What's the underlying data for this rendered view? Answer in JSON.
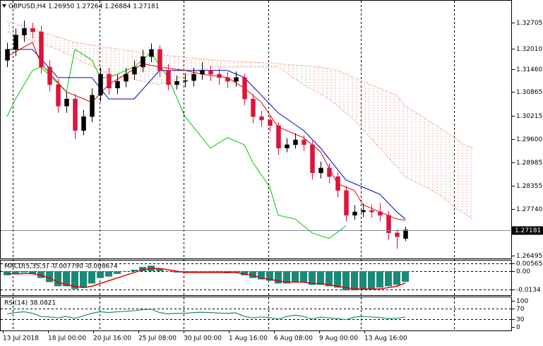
{
  "chart_data": {
    "type": "candlestick",
    "title": "GBPUSD,H4  1.26950 1.27264 1.26884 1.27181",
    "x_labels": [
      "13 Jul 2018",
      "18 Jul 00:00",
      "20 Jul 16:00",
      "25 Jul 08:00",
      "30 Jul 00:00",
      "1 Aug 16:00",
      "6 Aug 08:00",
      "9 Aug 00:00",
      "13 Aug 16:00"
    ],
    "ylim": [
      1.26401,
      1.33307
    ],
    "yticks": [
      1.32705,
      {
        "value": 1.3201,
        "label": "1.32010"
      },
      {
        "value": 1.3146,
        "label": "1.31460"
      },
      1.30865,
      1.30215,
      {
        "value": 1.296,
        "label": "1.29600"
      },
      1.28985,
      1.28355,
      {
        "value": 1.2774,
        "label": "1.27740"
      },
      1.26495
    ],
    "price_line": 1.27181,
    "up_color": "#000000",
    "down_color": "#dc143c",
    "candles": {
      "open": [
        1.317,
        1.3199,
        1.3237,
        1.3255,
        1.3246,
        1.3152,
        1.3105,
        1.3048,
        1.3067,
        1.2983,
        1.302,
        1.3077,
        1.3133,
        1.3096,
        1.3114,
        1.3133,
        1.3152,
        1.318,
        1.3199,
        1.3143,
        1.3105,
        1.3114,
        1.3116,
        1.3133,
        1.3143,
        1.3133,
        1.3124,
        1.3114,
        1.3124,
        1.3067,
        1.302,
        1.3011,
        1.2996,
        1.2936,
        1.2945,
        1.2958,
        1.2945,
        1.287,
        1.2883,
        1.286,
        1.2823,
        1.2757,
        1.2766,
        1.277,
        1.2766,
        1.2757,
        1.271,
        1.2695
      ],
      "high": [
        1.3217,
        1.3255,
        1.3276,
        1.327,
        1.3262,
        1.317,
        1.312,
        1.3085,
        1.308,
        1.3038,
        1.3095,
        1.3151,
        1.315,
        1.3132,
        1.315,
        1.317,
        1.3198,
        1.3215,
        1.321,
        1.316,
        1.313,
        1.3135,
        1.315,
        1.3165,
        1.3155,
        1.3148,
        1.3138,
        1.314,
        1.3135,
        1.308,
        1.3035,
        1.3025,
        1.3005,
        1.2962,
        1.2975,
        1.297,
        1.2955,
        1.29,
        1.2895,
        1.2872,
        1.2835,
        1.2784,
        1.2788,
        1.2786,
        1.279,
        1.2768,
        1.272,
        1.27264
      ],
      "low": [
        1.3152,
        1.3181,
        1.3219,
        1.3228,
        1.3134,
        1.3087,
        1.303,
        1.303,
        1.296,
        1.297,
        1.3005,
        1.306,
        1.3078,
        1.308,
        1.3098,
        1.3118,
        1.3138,
        1.3165,
        1.3125,
        1.309,
        1.3092,
        1.3098,
        1.31,
        1.3118,
        1.3115,
        1.3105,
        1.3096,
        1.31,
        1.305,
        1.3002,
        1.2993,
        1.298,
        1.2918,
        1.2925,
        1.2935,
        1.2928,
        1.2852,
        1.2855,
        1.2842,
        1.2805,
        1.274,
        1.2745,
        1.2752,
        1.275,
        1.274,
        1.2692,
        1.2668,
        1.26884
      ],
      "close": [
        1.3199,
        1.3237,
        1.3255,
        1.3246,
        1.3152,
        1.3105,
        1.3048,
        1.3067,
        1.2983,
        1.302,
        1.3077,
        1.3133,
        1.3096,
        1.3114,
        1.3133,
        1.3152,
        1.318,
        1.3199,
        1.3143,
        1.3105,
        1.3114,
        1.3116,
        1.3133,
        1.3143,
        1.3133,
        1.3124,
        1.3114,
        1.3124,
        1.3067,
        1.302,
        1.3011,
        1.2996,
        1.2936,
        1.2945,
        1.2958,
        1.2945,
        1.287,
        1.2883,
        1.286,
        1.2823,
        1.2757,
        1.2766,
        1.277,
        1.2766,
        1.2757,
        1.271,
        1.27,
        1.27181
      ]
    },
    "cloud": {
      "color": "#e8956a",
      "upper": {
        "x": [
          0,
          8,
          16,
          24,
          32,
          37,
          39,
          42,
          46,
          47,
          51,
          54,
          55
        ],
        "values": [
          1.3274,
          1.3218,
          1.319,
          1.3171,
          1.3161,
          1.3152,
          1.3143,
          1.3114,
          1.3077,
          1.3048,
          1.2992,
          1.2945,
          1.2936
        ]
      },
      "lower": {
        "x": [
          0,
          6,
          12,
          18,
          24,
          32,
          35,
          38,
          41,
          44,
          47,
          51,
          53,
          55
        ],
        "values": [
          1.3246,
          1.3199,
          1.3133,
          1.3105,
          1.3152,
          1.3152,
          1.3105,
          1.3067,
          1.3011,
          1.2936,
          1.286,
          1.2813,
          1.2775,
          1.2747
        ]
      }
    },
    "lines": [
      {
        "color": "#00c800",
        "x": [
          0,
          1,
          3,
          4,
          7,
          8,
          10,
          11,
          12,
          15,
          17,
          19,
          21,
          22,
          24,
          26,
          28,
          29,
          31,
          32,
          34,
          36,
          38,
          40
        ],
        "values": [
          1.302,
          1.3067,
          1.3143,
          1.3152,
          1.3086,
          1.3199,
          1.3171,
          1.3124,
          1.3124,
          1.3152,
          1.319,
          1.3124,
          1.302,
          1.2992,
          1.2936,
          1.2964,
          1.2945,
          1.2898,
          1.2832,
          1.2757,
          1.2747,
          1.271,
          1.2695,
          1.2729
        ]
      },
      {
        "color": "#0000b4",
        "x": [
          0,
          3,
          6,
          10,
          12,
          15,
          18,
          21,
          26,
          28,
          30,
          32,
          35,
          37,
          40,
          42,
          44,
          46,
          47
        ],
        "values": [
          1.3199,
          1.3199,
          1.3124,
          1.3124,
          1.3067,
          1.3067,
          1.3143,
          1.3143,
          1.3143,
          1.3124,
          1.3077,
          1.303,
          1.2983,
          1.2936,
          1.2851,
          1.2832,
          1.2813,
          1.2766,
          1.2747
        ]
      },
      {
        "color": "#e00000",
        "x": [
          0,
          3,
          4,
          7,
          10,
          12,
          16,
          18,
          21,
          23,
          26,
          28,
          30,
          32,
          35,
          37,
          39,
          41,
          42,
          44,
          46,
          47
        ],
        "values": [
          1.318,
          1.3218,
          1.3161,
          1.3086,
          1.3058,
          1.3105,
          1.3161,
          1.3152,
          1.3143,
          1.3133,
          1.3124,
          1.3096,
          1.3058,
          1.2992,
          1.2964,
          1.2926,
          1.2841,
          1.2823,
          1.2785,
          1.2766,
          1.2747,
          1.2744
        ]
      }
    ],
    "macd": {
      "title": "MACD(5,35,5) -0.007790 -0.008674",
      "ylim": [
        -0.018,
        0.0082
      ],
      "yticks": [
        0.005652,
        {
          "value": 0,
          "label": "0.00"
        },
        -0.0134
      ],
      "histogram": {
        "color": "#1a8a78",
        "values": [
          -0.003,
          -0.002,
          -0.001,
          -0.002,
          -0.005,
          -0.008,
          -0.011,
          -0.011,
          -0.013,
          -0.012,
          -0.009,
          -0.005,
          -0.004,
          -0.002,
          0.0,
          0.001,
          0.003,
          0.004,
          0.002,
          0.0,
          -0.001,
          -0.001,
          -0.001,
          -0.0005,
          -0.001,
          -0.001,
          -0.0015,
          -0.001,
          -0.003,
          -0.005,
          -0.006,
          -0.007,
          -0.009,
          -0.009,
          -0.008,
          -0.008,
          -0.01,
          -0.01,
          -0.011,
          -0.012,
          -0.014,
          -0.014,
          -0.0135,
          -0.013,
          -0.012,
          -0.011,
          -0.01,
          -0.00779
        ]
      },
      "signal": {
        "color": "#e00000",
        "values": [
          -0.002,
          -0.002,
          -0.0018,
          -0.0018,
          -0.003,
          -0.005,
          -0.008,
          -0.01,
          -0.011,
          -0.012,
          -0.011,
          -0.009,
          -0.007,
          -0.005,
          -0.003,
          -0.001,
          0.001,
          0.002,
          0.002,
          0.001,
          0.0,
          -0.001,
          -0.001,
          -0.001,
          -0.001,
          -0.001,
          -0.001,
          -0.001,
          -0.002,
          -0.003,
          -0.005,
          -0.006,
          -0.007,
          -0.008,
          -0.008,
          -0.008,
          -0.009,
          -0.009,
          -0.01,
          -0.011,
          -0.012,
          -0.013,
          -0.013,
          -0.013,
          -0.013,
          -0.012,
          -0.011,
          -0.008674
        ]
      }
    },
    "rsi": {
      "title": "RSI(14) 38.0821",
      "ylim": [
        0,
        100
      ],
      "yticks": [
        100,
        70,
        30,
        0
      ],
      "color": "#1a8a78",
      "values": [
        50,
        55,
        58,
        52,
        40,
        38,
        35,
        40,
        33,
        42,
        52,
        58,
        55,
        58,
        60,
        62,
        66,
        68,
        55,
        50,
        52,
        52,
        55,
        56,
        55,
        53,
        52,
        54,
        40,
        35,
        38,
        36,
        30,
        40,
        45,
        40,
        30,
        38,
        35,
        32,
        28,
        38,
        40,
        38,
        36,
        32,
        33,
        38.0821
      ]
    }
  }
}
